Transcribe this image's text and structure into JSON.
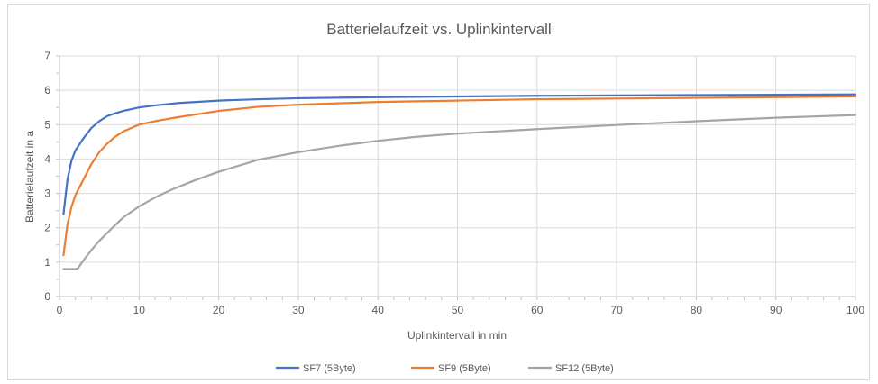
{
  "chart_data": {
    "type": "line",
    "title": "Batterielaufzeit vs. Uplinkintervall",
    "xlabel": "Uplinkintervall in min",
    "ylabel": "Batterielaufzeit in a",
    "xlim": [
      0,
      100
    ],
    "ylim": [
      0,
      7
    ],
    "x_ticks": [
      0,
      10,
      20,
      30,
      40,
      50,
      60,
      70,
      80,
      90,
      100
    ],
    "y_ticks": [
      0,
      1,
      2,
      3,
      4,
      5,
      6,
      7
    ],
    "grid": true,
    "legend_position": "bottom",
    "series": [
      {
        "name": "SF7 (5Byte)",
        "color": "#4472c4",
        "points": [
          [
            0.5,
            2.4
          ],
          [
            1,
            3.4
          ],
          [
            1.5,
            3.95
          ],
          [
            2,
            4.25
          ],
          [
            3,
            4.6
          ],
          [
            4,
            4.9
          ],
          [
            5,
            5.1
          ],
          [
            6,
            5.25
          ],
          [
            7,
            5.33
          ],
          [
            8,
            5.4
          ],
          [
            10,
            5.5
          ],
          [
            12,
            5.56
          ],
          [
            15,
            5.63
          ],
          [
            20,
            5.7
          ],
          [
            25,
            5.74
          ],
          [
            30,
            5.77
          ],
          [
            40,
            5.8
          ],
          [
            50,
            5.82
          ],
          [
            60,
            5.84
          ],
          [
            70,
            5.85
          ],
          [
            80,
            5.86
          ],
          [
            90,
            5.87
          ],
          [
            100,
            5.88
          ]
        ]
      },
      {
        "name": "SF9 (5Byte)",
        "color": "#ed7d31",
        "points": [
          [
            0.5,
            1.2
          ],
          [
            1,
            2.1
          ],
          [
            1.5,
            2.6
          ],
          [
            2,
            2.95
          ],
          [
            3,
            3.4
          ],
          [
            4,
            3.85
          ],
          [
            5,
            4.2
          ],
          [
            6,
            4.45
          ],
          [
            7,
            4.65
          ],
          [
            8,
            4.8
          ],
          [
            10,
            5.0
          ],
          [
            12,
            5.1
          ],
          [
            15,
            5.22
          ],
          [
            20,
            5.4
          ],
          [
            25,
            5.52
          ],
          [
            30,
            5.58
          ],
          [
            40,
            5.66
          ],
          [
            50,
            5.7
          ],
          [
            60,
            5.74
          ],
          [
            70,
            5.76
          ],
          [
            80,
            5.78
          ],
          [
            90,
            5.8
          ],
          [
            100,
            5.82
          ]
        ]
      },
      {
        "name": "SF12 (5Byte)",
        "color": "#a5a5a5",
        "points": [
          [
            0.5,
            0.8
          ],
          [
            1,
            0.8
          ],
          [
            2,
            0.8
          ],
          [
            2.3,
            0.82
          ],
          [
            3,
            1.05
          ],
          [
            4,
            1.35
          ],
          [
            5,
            1.62
          ],
          [
            6,
            1.85
          ],
          [
            7,
            2.08
          ],
          [
            8,
            2.3
          ],
          [
            10,
            2.62
          ],
          [
            12,
            2.88
          ],
          [
            14,
            3.1
          ],
          [
            17,
            3.38
          ],
          [
            20,
            3.63
          ],
          [
            25,
            3.98
          ],
          [
            30,
            4.2
          ],
          [
            35,
            4.38
          ],
          [
            40,
            4.53
          ],
          [
            45,
            4.65
          ],
          [
            50,
            4.74
          ],
          [
            60,
            4.87
          ],
          [
            70,
            4.99
          ],
          [
            80,
            5.1
          ],
          [
            90,
            5.2
          ],
          [
            100,
            5.28
          ]
        ]
      }
    ]
  },
  "style": {
    "grid_color": "#d9d9d9",
    "axis_color": "#bfbfbf",
    "text_color": "#595959"
  }
}
